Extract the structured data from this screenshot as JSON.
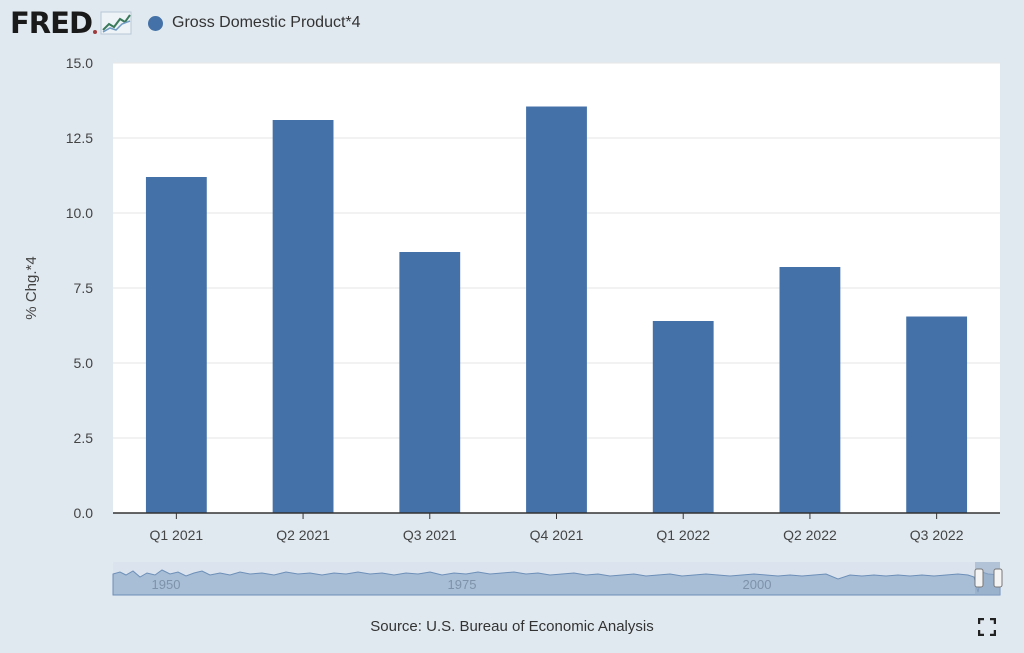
{
  "header": {
    "logo_text": "FRED",
    "legend_label": "Gross Domestic Product*4",
    "legend_color": "#4472a8"
  },
  "chart_data": {
    "type": "bar",
    "categories": [
      "Q1 2021",
      "Q2 2021",
      "Q3 2021",
      "Q4 2021",
      "Q1 2022",
      "Q2 2022",
      "Q3 2022"
    ],
    "series": [
      {
        "name": "Gross Domestic Product*4",
        "values": [
          11.2,
          13.1,
          8.7,
          13.55,
          6.4,
          8.2,
          6.55
        ]
      }
    ],
    "ylabel": "% Chg.*4",
    "ylim": [
      0,
      15
    ],
    "yticks": [
      0.0,
      2.5,
      5.0,
      7.5,
      10.0,
      12.5,
      15.0
    ],
    "grid": true,
    "legend_position": "top-left",
    "bar_color": "#4472a8"
  },
  "navigator": {
    "labels": [
      "1950",
      "1975",
      "2000"
    ]
  },
  "footer": {
    "source": "Source: U.S. Bureau of Economic Analysis"
  },
  "icons": {
    "fullscreen": "fullscreen-icon",
    "logo": "fred-chart-logo-icon"
  }
}
